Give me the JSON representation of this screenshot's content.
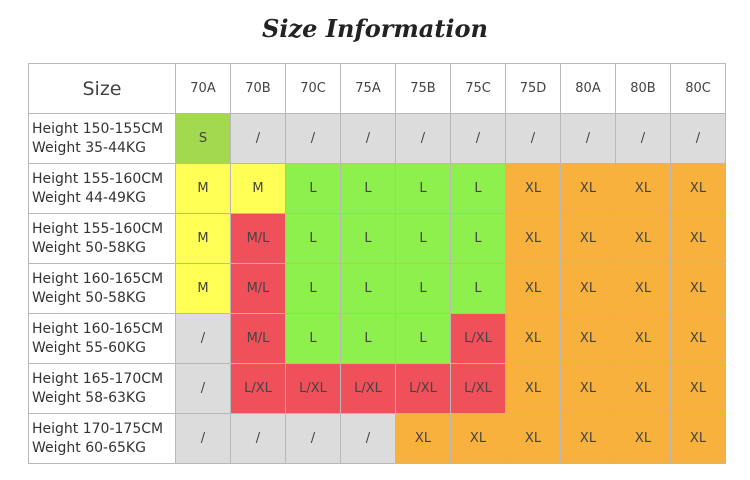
{
  "title": "Size Information",
  "table": {
    "header": [
      "Size",
      "70A",
      "70B",
      "70C",
      "75A",
      "75B",
      "75C",
      "75D",
      "80A",
      "80B",
      "80C"
    ],
    "rows": [
      {
        "label": [
          "Height 150-155CM",
          "Weight 35-44KG"
        ],
        "cells": [
          "S",
          "/",
          "/",
          "/",
          "/",
          "/",
          "/",
          "/",
          "/",
          "/"
        ],
        "colors": [
          "#a3d94e",
          "#dcdcdc",
          "#dcdcdc",
          "#dcdcdc",
          "#dcdcdc",
          "#dcdcdc",
          "#dcdcdc",
          "#dcdcdc",
          "#dcdcdc",
          "#dcdcdc"
        ]
      },
      {
        "label": [
          "Height 155-160CM",
          "Weight 44-49KG"
        ],
        "cells": [
          "M",
          "M",
          "L",
          "L",
          "L",
          "L",
          "XL",
          "XL",
          "XL",
          "XL"
        ],
        "colors": [
          "#ffff55",
          "#ffff55",
          "#8ef04c",
          "#8ef04c",
          "#8ef04c",
          "#8ef04c",
          "#f9b13d",
          "#f9b13d",
          "#f9b13d",
          "#f9b13d"
        ]
      },
      {
        "label": [
          "Height 155-160CM",
          "Weight 50-58KG"
        ],
        "cells": [
          "M",
          "M/L",
          "L",
          "L",
          "L",
          "L",
          "XL",
          "XL",
          "XL",
          "XL"
        ],
        "colors": [
          "#ffff55",
          "#f0505a",
          "#8ef04c",
          "#8ef04c",
          "#8ef04c",
          "#8ef04c",
          "#f9b13d",
          "#f9b13d",
          "#f9b13d",
          "#f9b13d"
        ]
      },
      {
        "label": [
          "Height 160-165CM",
          "Weight 50-58KG"
        ],
        "cells": [
          "M",
          "M/L",
          "L",
          "L",
          "L",
          "L",
          "XL",
          "XL",
          "XL",
          "XL"
        ],
        "colors": [
          "#ffff55",
          "#f0505a",
          "#8ef04c",
          "#8ef04c",
          "#8ef04c",
          "#8ef04c",
          "#f9b13d",
          "#f9b13d",
          "#f9b13d",
          "#f9b13d"
        ]
      },
      {
        "label": [
          "Height 160-165CM",
          "Weight 55-60KG"
        ],
        "cells": [
          "/",
          "M/L",
          "L",
          "L",
          "L",
          "L/XL",
          "XL",
          "XL",
          "XL",
          "XL"
        ],
        "colors": [
          "#dcdcdc",
          "#f0505a",
          "#8ef04c",
          "#8ef04c",
          "#8ef04c",
          "#f0505a",
          "#f9b13d",
          "#f9b13d",
          "#f9b13d",
          "#f9b13d"
        ]
      },
      {
        "label": [
          "Height 165-170CM",
          "Weight 58-63KG"
        ],
        "cells": [
          "/",
          "L/XL",
          "L/XL",
          "L/XL",
          "L/XL",
          "L/XL",
          "XL",
          "XL",
          "XL",
          "XL"
        ],
        "colors": [
          "#dcdcdc",
          "#f0505a",
          "#f0505a",
          "#f0505a",
          "#f0505a",
          "#f0505a",
          "#f9b13d",
          "#f9b13d",
          "#f9b13d",
          "#f9b13d"
        ]
      },
      {
        "label": [
          "Height 170-175CM",
          "Weight 60-65KG"
        ],
        "cells": [
          "/",
          "/",
          "/",
          "/",
          "XL",
          "XL",
          "XL",
          "XL",
          "XL",
          "XL"
        ],
        "colors": [
          "#dcdcdc",
          "#dcdcdc",
          "#dcdcdc",
          "#dcdcdc",
          "#f9b13d",
          "#f9b13d",
          "#f9b13d",
          "#f9b13d",
          "#f9b13d",
          "#f9b13d"
        ]
      }
    ]
  }
}
